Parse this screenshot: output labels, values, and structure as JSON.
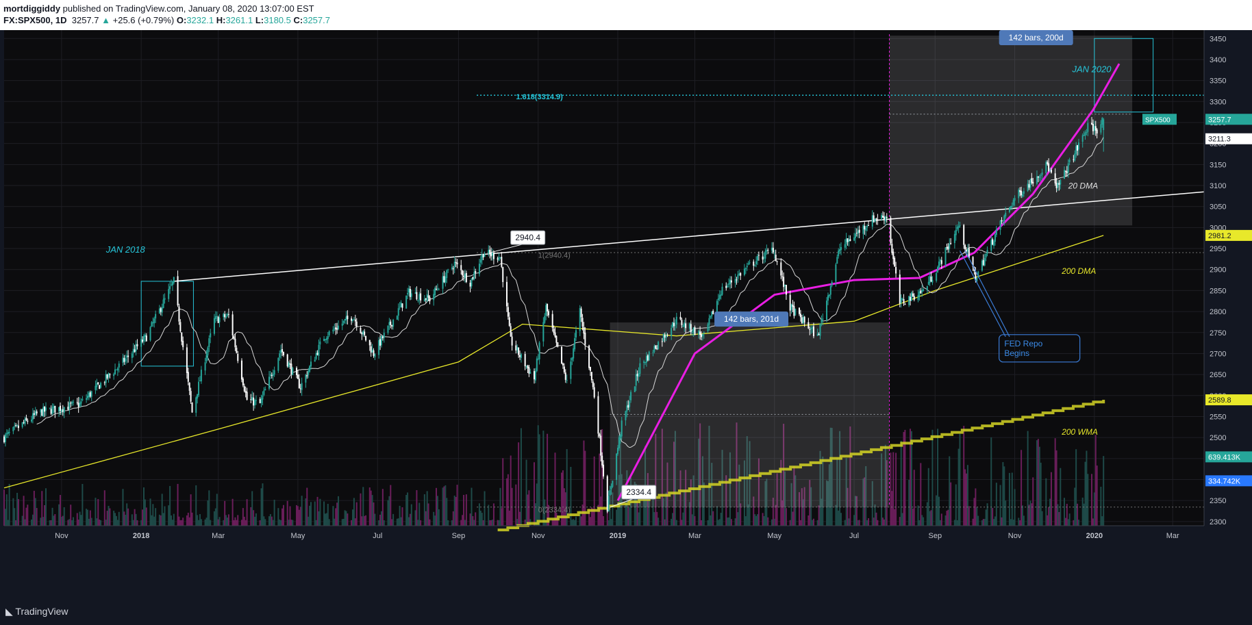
{
  "header": {
    "author": "mortdiggiddy",
    "published": "published on TradingView.com, January 08, 2020 13:07:00 EST",
    "symbol": "FX:SPX500, 1D",
    "last": "3257.7",
    "change": "+25.6 (+0.79%)",
    "o_label": "O:",
    "o_value": "3232.1",
    "h_label": "H:",
    "h_value": "3261.1",
    "l_label": "L:",
    "l_value": "3180.5",
    "c_label": "C:",
    "c_value": "3257.7"
  },
  "footer": {
    "brand": "TradingView"
  },
  "icons": {
    "logo": "tradingview-logo-icon",
    "up": "up-triangle-icon"
  },
  "colors": {
    "bg": "#0c0c0e",
    "up": "#26a69a",
    "down": "#ffffff",
    "grid": "#1e1e24",
    "white_line": "#ffffff",
    "magenta": "#e91ee3",
    "yellow": "#e8e82a",
    "wma": "#d4d424",
    "cyan": "#26c6da",
    "box_label": "#4f79b8",
    "vol_up": "#1e4a48",
    "vol_down": "#6a1e5a"
  },
  "chart_data": {
    "type": "candlestick",
    "symbol": "FX:SPX500",
    "interval": "1D",
    "ylim": [
      2290,
      3470
    ],
    "y_ticks": [
      2300,
      2350,
      2400,
      2450,
      2500,
      2550,
      2600,
      2650,
      2700,
      2750,
      2800,
      2850,
      2900,
      2950,
      3000,
      3050,
      3100,
      3150,
      3200,
      3250,
      3300,
      3350,
      3400,
      3450
    ],
    "x_range": [
      "2017-09-18",
      "2020-03-25"
    ],
    "x_ticks": [
      {
        "label": "Nov",
        "date": "2017-11-01",
        "bold": false
      },
      {
        "label": "2018",
        "date": "2018-01-01",
        "bold": true
      },
      {
        "label": "Mar",
        "date": "2018-03-01",
        "bold": false
      },
      {
        "label": "May",
        "date": "2018-05-01",
        "bold": false
      },
      {
        "label": "Jul",
        "date": "2018-07-01",
        "bold": false
      },
      {
        "label": "Sep",
        "date": "2018-09-01",
        "bold": false
      },
      {
        "label": "Nov",
        "date": "2018-11-01",
        "bold": false
      },
      {
        "label": "2019",
        "date": "2019-01-01",
        "bold": true
      },
      {
        "label": "Mar",
        "date": "2019-03-01",
        "bold": false
      },
      {
        "label": "May",
        "date": "2019-05-01",
        "bold": false
      },
      {
        "label": "Jul",
        "date": "2019-07-01",
        "bold": false
      },
      {
        "label": "Sep",
        "date": "2019-09-01",
        "bold": false
      },
      {
        "label": "Nov",
        "date": "2019-11-01",
        "bold": false
      },
      {
        "label": "2020",
        "date": "2020-01-01",
        "bold": true
      },
      {
        "label": "Mar",
        "date": "2020-03-01",
        "bold": false
      }
    ],
    "price_path": [
      [
        "2017-09-18",
        2500
      ],
      [
        "2017-10-15",
        2560
      ],
      [
        "2017-11-15",
        2580
      ],
      [
        "2017-12-15",
        2670
      ],
      [
        "2018-01-05",
        2740
      ],
      [
        "2018-01-26",
        2872
      ],
      [
        "2018-02-09",
        2560
      ],
      [
        "2018-02-26",
        2780
      ],
      [
        "2018-03-09",
        2790
      ],
      [
        "2018-03-23",
        2590
      ],
      [
        "2018-04-02",
        2580
      ],
      [
        "2018-04-18",
        2710
      ],
      [
        "2018-05-03",
        2620
      ],
      [
        "2018-05-21",
        2740
      ],
      [
        "2018-06-12",
        2790
      ],
      [
        "2018-06-28",
        2700
      ],
      [
        "2018-07-25",
        2845
      ],
      [
        "2018-08-10",
        2830
      ],
      [
        "2018-08-29",
        2915
      ],
      [
        "2018-09-10",
        2870
      ],
      [
        "2018-09-20",
        2940
      ],
      [
        "2018-10-03",
        2930
      ],
      [
        "2018-10-11",
        2730
      ],
      [
        "2018-10-29",
        2640
      ],
      [
        "2018-11-07",
        2810
      ],
      [
        "2018-11-23",
        2630
      ],
      [
        "2018-12-03",
        2800
      ],
      [
        "2018-12-14",
        2600
      ],
      [
        "2018-12-24",
        2334
      ],
      [
        "2019-01-04",
        2530
      ],
      [
        "2019-01-18",
        2670
      ],
      [
        "2019-02-15",
        2780
      ],
      [
        "2019-03-08",
        2740
      ],
      [
        "2019-03-21",
        2850
      ],
      [
        "2019-04-12",
        2910
      ],
      [
        "2019-04-30",
        2950
      ],
      [
        "2019-05-13",
        2810
      ],
      [
        "2019-06-03",
        2740
      ],
      [
        "2019-06-20",
        2950
      ],
      [
        "2019-07-15",
        3020
      ],
      [
        "2019-07-26",
        3027
      ],
      [
        "2019-08-05",
        2820
      ],
      [
        "2019-08-23",
        2850
      ],
      [
        "2019-09-03",
        2905
      ],
      [
        "2019-09-19",
        3005
      ],
      [
        "2019-10-02",
        2880
      ],
      [
        "2019-10-18",
        2990
      ],
      [
        "2019-11-01",
        3070
      ],
      [
        "2019-11-26",
        3150
      ],
      [
        "2019-12-03",
        3090
      ],
      [
        "2019-12-27",
        3240
      ],
      [
        "2020-01-03",
        3235
      ],
      [
        "2020-01-08",
        3257.7
      ]
    ],
    "ohlc_last": {
      "open": 3232.1,
      "high": 3261.1,
      "low": 3180.5,
      "close": 3257.7
    },
    "series": [
      {
        "name": "20 DMA",
        "kind": "line",
        "window": 20
      },
      {
        "name": "200 DMA",
        "kind": "line",
        "points": [
          [
            "2017-09-18",
            2380
          ],
          [
            "2018-03-01",
            2520
          ],
          [
            "2018-09-01",
            2680
          ],
          [
            "2018-10-20",
            2770
          ],
          [
            "2019-02-15",
            2742
          ],
          [
            "2019-07-01",
            2777
          ],
          [
            "2019-09-01",
            2850
          ],
          [
            "2020-01-08",
            2981.2
          ]
        ]
      },
      {
        "name": "200 WMA",
        "kind": "step",
        "points": [
          [
            "2018-10-01",
            2280
          ],
          [
            "2020-01-08",
            2589.8
          ]
        ]
      }
    ],
    "price_labels": [
      {
        "text": "SPX500",
        "value": 3257.7,
        "label": "3257.7",
        "color": "#26a69a"
      },
      {
        "value": 3211.3,
        "label": "3211.3",
        "color": "#ffffff"
      },
      {
        "value": 2981.2,
        "label": "2981.2",
        "color": "#e8e82a"
      },
      {
        "value": 2589.8,
        "label": "2589.8",
        "color": "#e8e82a"
      },
      {
        "label": "639.413K",
        "color": "#26a69a",
        "y_at": 2454
      },
      {
        "label": "334.742K",
        "color": "#2979ff",
        "y_at": 2397
      }
    ],
    "annotations": {
      "jan2018": "JAN 2018",
      "jan2020": "JAN 2020",
      "fib_1618": "1.618(3314.9)",
      "fib_1_top": "1(2940.4)",
      "fib_0": "0(2334.4)",
      "callout_high": "2940.4",
      "callout_low": "2334.4",
      "bars_box1": "142 bars, 201d",
      "bars_box2": "142 bars, 200d",
      "dma20": "20 DMA",
      "dma200": "200 DMA",
      "wma200": "200 WMA",
      "fed_repo": [
        "FED Repo",
        "Begins"
      ]
    },
    "levels": {
      "fib_1618": 3314.9,
      "high": 2940.4,
      "low": 2334.4,
      "dotted_top": 3270,
      "dotted_box1": 2555
    }
  }
}
